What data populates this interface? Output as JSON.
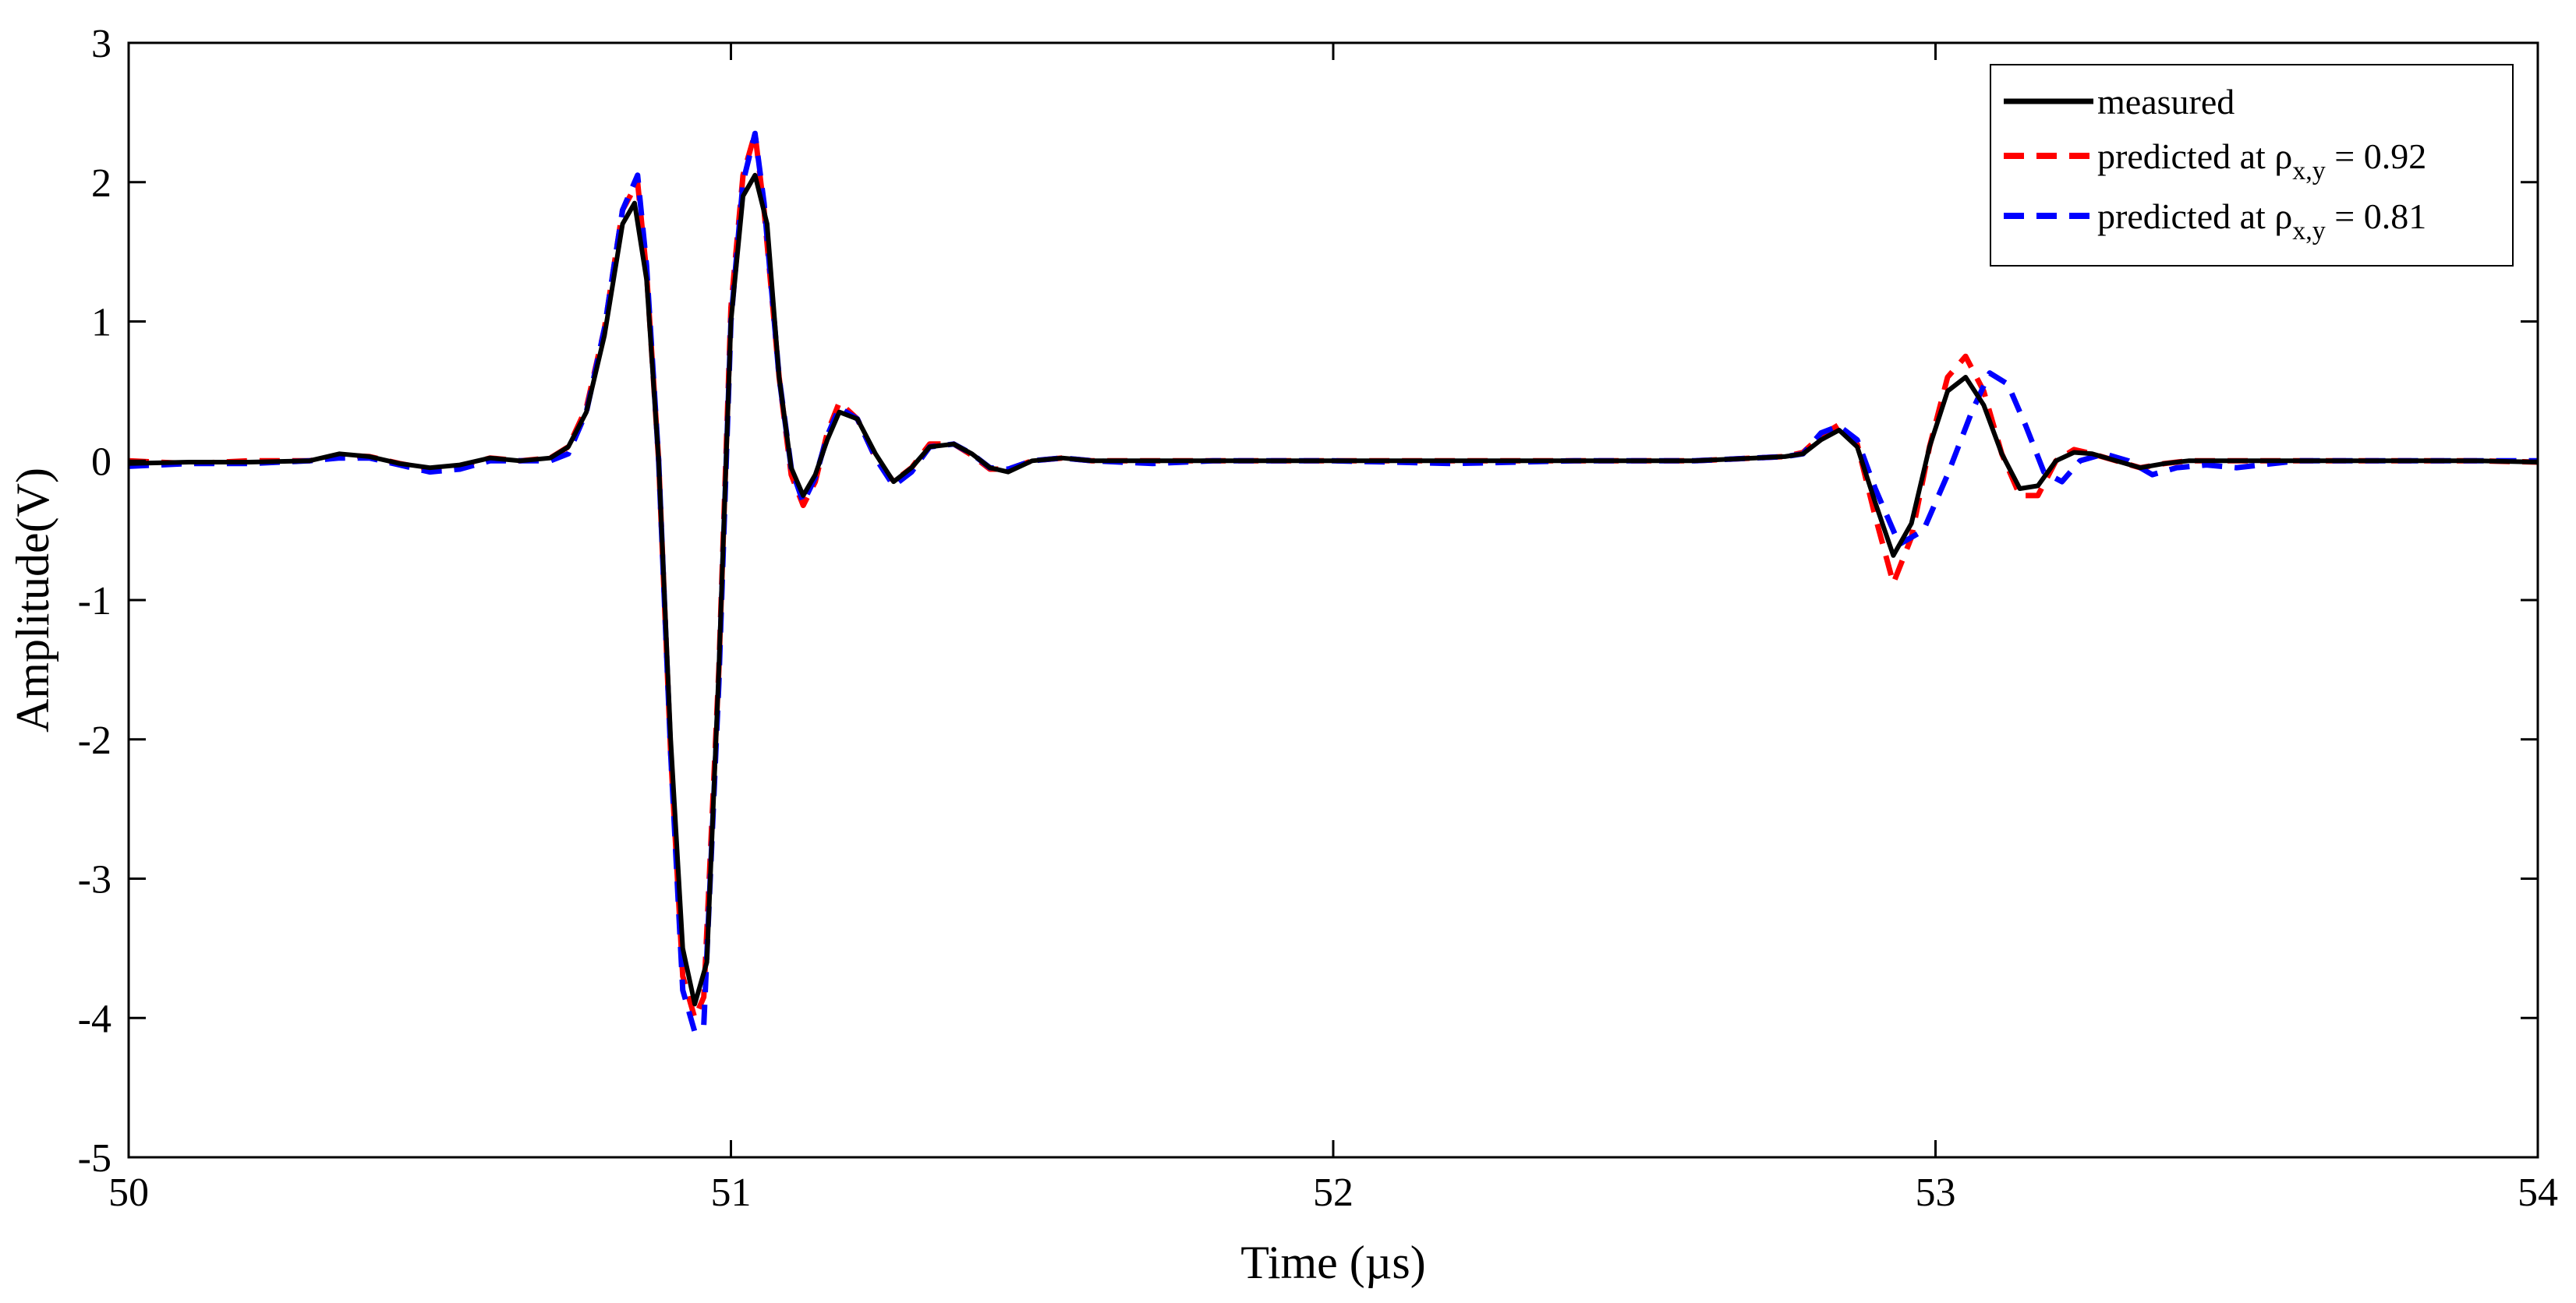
{
  "chart_data": {
    "type": "line",
    "title": "",
    "xlabel": "Time (µs)",
    "ylabel": "Amplitude(V)",
    "xlim": [
      50,
      54
    ],
    "ylim": [
      -5,
      3
    ],
    "x_ticks": [
      50,
      51,
      52,
      53,
      54
    ],
    "x_tick_labels": [
      "50",
      "51",
      "52",
      "53",
      "54"
    ],
    "y_ticks": [
      -5,
      -4,
      -3,
      -2,
      -1,
      0,
      1,
      2,
      3
    ],
    "y_tick_labels": [
      "-5",
      "-4",
      "-3",
      "-2",
      "-1",
      "0",
      "1",
      "2",
      "3"
    ],
    "grid": false,
    "legend_position": "top-right",
    "series": [
      {
        "name": "measured",
        "color": "#000000",
        "dash": "solid",
        "x": [
          50.0,
          50.1,
          50.2,
          50.3,
          50.35,
          50.4,
          50.45,
          50.5,
          50.55,
          50.6,
          50.65,
          50.7,
          50.73,
          50.76,
          50.79,
          50.82,
          50.84,
          50.86,
          50.88,
          50.9,
          50.92,
          50.94,
          50.96,
          50.98,
          51.0,
          51.02,
          51.04,
          51.06,
          51.08,
          51.1,
          51.12,
          51.14,
          51.16,
          51.18,
          51.21,
          51.24,
          51.27,
          51.3,
          51.33,
          51.37,
          51.4,
          51.43,
          51.46,
          51.5,
          51.55,
          51.6,
          51.7,
          51.8,
          52.0,
          52.2,
          52.4,
          52.6,
          52.7,
          52.75,
          52.78,
          52.81,
          52.84,
          52.87,
          52.9,
          52.93,
          52.96,
          52.99,
          53.02,
          53.05,
          53.08,
          53.11,
          53.14,
          53.17,
          53.2,
          53.23,
          53.26,
          53.3,
          53.34,
          53.38,
          53.42,
          53.5,
          53.6,
          53.7,
          53.8,
          53.9,
          54.0
        ],
        "y": [
          -0.02,
          -0.01,
          -0.01,
          0.0,
          0.05,
          0.03,
          -0.02,
          -0.05,
          -0.03,
          0.02,
          0.0,
          0.02,
          0.1,
          0.35,
          0.9,
          1.7,
          1.85,
          1.3,
          0.0,
          -2.0,
          -3.5,
          -3.9,
          -3.6,
          -1.5,
          1.0,
          1.9,
          2.05,
          1.7,
          0.6,
          -0.05,
          -0.25,
          -0.1,
          0.15,
          0.35,
          0.3,
          0.05,
          -0.15,
          -0.05,
          0.1,
          0.12,
          0.05,
          -0.05,
          -0.08,
          0.0,
          0.02,
          0.0,
          0.0,
          0.0,
          0.0,
          0.0,
          0.0,
          0.0,
          0.02,
          0.03,
          0.05,
          0.15,
          0.22,
          0.1,
          -0.3,
          -0.68,
          -0.45,
          0.1,
          0.5,
          0.6,
          0.4,
          0.05,
          -0.2,
          -0.18,
          0.0,
          0.06,
          0.05,
          0.0,
          -0.05,
          -0.02,
          0.0,
          0.0,
          0.0,
          0.0,
          0.0,
          0.0,
          -0.01
        ]
      },
      {
        "name": "predicted at ρx,y = 0.92",
        "color": "#ff0000",
        "dash": "dashed",
        "x": [
          50.0,
          50.1,
          50.2,
          50.3,
          50.35,
          50.4,
          50.45,
          50.5,
          50.55,
          50.6,
          50.65,
          50.7,
          50.73,
          50.76,
          50.79,
          50.82,
          50.845,
          50.86,
          50.88,
          50.9,
          50.92,
          50.94,
          50.955,
          50.98,
          51.0,
          51.02,
          51.04,
          51.055,
          51.08,
          51.1,
          51.12,
          51.14,
          51.16,
          51.18,
          51.21,
          51.24,
          51.27,
          51.3,
          51.33,
          51.37,
          51.4,
          51.43,
          51.46,
          51.5,
          51.55,
          51.6,
          51.7,
          51.8,
          52.0,
          52.2,
          52.4,
          52.6,
          52.7,
          52.75,
          52.78,
          52.81,
          52.84,
          52.87,
          52.9,
          52.93,
          52.96,
          52.99,
          53.02,
          53.05,
          53.08,
          53.11,
          53.14,
          53.17,
          53.2,
          53.23,
          53.26,
          53.3,
          53.34,
          53.38,
          53.42,
          53.5,
          53.6,
          53.7,
          53.8,
          53.9,
          54.0
        ],
        "y": [
          0.0,
          -0.02,
          0.0,
          0.0,
          0.04,
          0.03,
          -0.02,
          -0.06,
          -0.04,
          0.02,
          0.0,
          0.02,
          0.1,
          0.38,
          0.95,
          1.8,
          2.0,
          1.35,
          0.0,
          -2.1,
          -3.7,
          -4.0,
          -3.85,
          -1.5,
          1.1,
          2.05,
          2.35,
          1.8,
          0.6,
          -0.1,
          -0.32,
          -0.15,
          0.2,
          0.42,
          0.3,
          0.02,
          -0.15,
          -0.05,
          0.12,
          0.12,
          0.04,
          -0.06,
          -0.06,
          0.0,
          0.02,
          0.0,
          0.0,
          0.0,
          0.0,
          0.0,
          0.0,
          0.0,
          0.02,
          0.03,
          0.06,
          0.18,
          0.26,
          0.12,
          -0.4,
          -0.88,
          -0.55,
          0.1,
          0.6,
          0.75,
          0.5,
          0.05,
          -0.25,
          -0.25,
          0.0,
          0.08,
          0.05,
          0.0,
          -0.05,
          -0.02,
          0.0,
          0.0,
          0.0,
          0.0,
          0.0,
          0.0,
          -0.01
        ]
      },
      {
        "name": "predicted at ρx,y = 0.81",
        "color": "#0000ff",
        "dash": "dashed",
        "x": [
          50.0,
          50.1,
          50.2,
          50.3,
          50.35,
          50.4,
          50.45,
          50.5,
          50.55,
          50.6,
          50.65,
          50.7,
          50.73,
          50.76,
          50.79,
          50.82,
          50.845,
          50.86,
          50.88,
          50.9,
          50.92,
          50.94,
          50.955,
          50.98,
          51.0,
          51.02,
          51.04,
          51.055,
          51.08,
          51.1,
          51.12,
          51.14,
          51.16,
          51.18,
          51.21,
          51.24,
          51.27,
          51.3,
          51.33,
          51.37,
          51.4,
          51.43,
          51.46,
          51.5,
          51.55,
          51.6,
          51.7,
          51.8,
          52.0,
          52.2,
          52.4,
          52.6,
          52.7,
          52.75,
          52.78,
          52.81,
          52.84,
          52.87,
          52.9,
          52.94,
          52.98,
          53.02,
          53.06,
          53.09,
          53.12,
          53.15,
          53.18,
          53.21,
          53.24,
          53.28,
          53.32,
          53.36,
          53.4,
          53.45,
          53.5,
          53.6,
          53.7,
          53.8,
          53.9,
          54.0
        ],
        "y": [
          -0.04,
          -0.02,
          -0.02,
          0.0,
          0.02,
          0.02,
          -0.03,
          -0.08,
          -0.06,
          0.0,
          0.0,
          0.0,
          0.05,
          0.35,
          0.95,
          1.8,
          2.05,
          1.4,
          0.0,
          -2.1,
          -3.8,
          -4.1,
          -4.05,
          -1.6,
          1.0,
          2.0,
          2.35,
          1.85,
          0.6,
          -0.05,
          -0.3,
          -0.12,
          0.18,
          0.38,
          0.3,
          0.02,
          -0.18,
          -0.08,
          0.1,
          0.12,
          0.05,
          -0.05,
          -0.06,
          0.0,
          0.02,
          0.0,
          -0.02,
          0.0,
          0.0,
          -0.02,
          0.0,
          0.0,
          0.02,
          0.03,
          0.05,
          0.2,
          0.25,
          0.15,
          -0.2,
          -0.6,
          -0.5,
          -0.1,
          0.35,
          0.63,
          0.55,
          0.25,
          -0.08,
          -0.15,
          0.0,
          0.05,
          0.0,
          -0.1,
          -0.05,
          -0.03,
          -0.05,
          0.0,
          0.0,
          0.0,
          0.0,
          0.0
        ]
      }
    ]
  },
  "legend": [
    {
      "main": "measured",
      "sub": "",
      "post": ""
    },
    {
      "main": "predicted at ρ",
      "sub": "x,y",
      "post": " = 0.92"
    },
    {
      "main": "predicted at ρ",
      "sub": "x,y",
      "post": " = 0.81"
    }
  ]
}
